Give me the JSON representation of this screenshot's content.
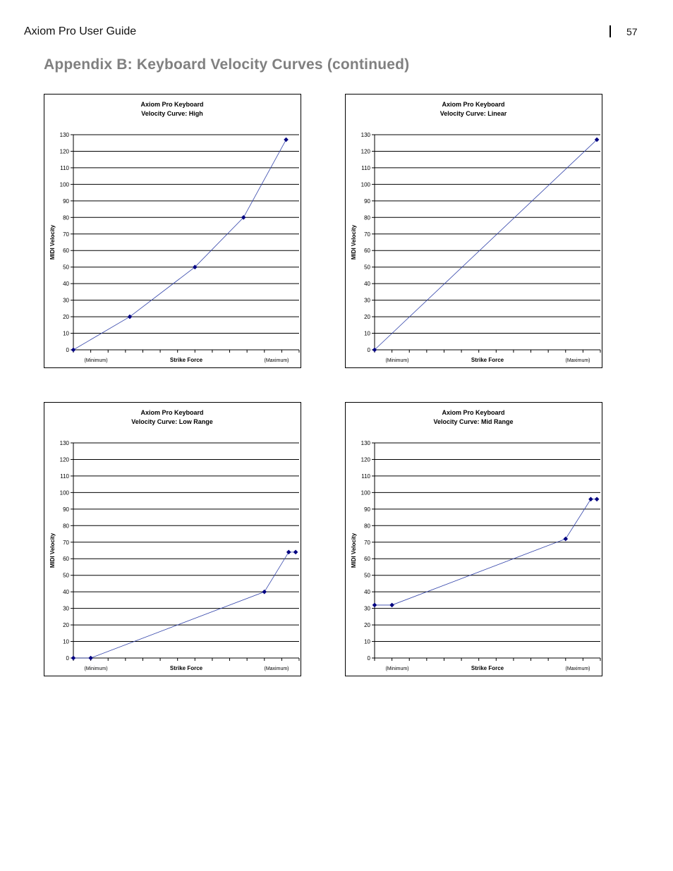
{
  "header": {
    "doc_title": "Axiom Pro User Guide",
    "page_number": "57",
    "heading": "Appendix B:  Keyboard Velocity Curves (continued)"
  },
  "colors": {
    "line": "#3344aa",
    "marker": "#000080",
    "grid": "#000000"
  },
  "chart_data": [
    {
      "type": "line",
      "title": [
        "Axiom Pro Keyboard",
        "Velocity Curve: High"
      ],
      "xlabel": "Strike Force",
      "ylabel": "MIDI Velocity",
      "x_tick_labels": {
        "min": "(Minimum)",
        "max": "(Maximum)"
      },
      "xlim": [
        0,
        13
      ],
      "ylim": [
        0,
        130
      ],
      "y_ticks": [
        0,
        10,
        20,
        30,
        40,
        50,
        60,
        70,
        80,
        90,
        100,
        110,
        120,
        130
      ],
      "grid": true,
      "series": [
        {
          "x": [
            0,
            3.25,
            7,
            9.8,
            12.25
          ],
          "y": [
            0,
            20,
            50,
            80,
            127
          ]
        }
      ]
    },
    {
      "type": "line",
      "title": [
        "Axiom Pro Keyboard",
        "Velocity Curve: Linear"
      ],
      "xlabel": "Strike Force",
      "ylabel": "MIDI Velocity",
      "x_tick_labels": {
        "min": "(Minimum)",
        "max": "(Maximum)"
      },
      "xlim": [
        0,
        13
      ],
      "ylim": [
        0,
        130
      ],
      "y_ticks": [
        0,
        10,
        20,
        30,
        40,
        50,
        60,
        70,
        80,
        90,
        100,
        110,
        120,
        130
      ],
      "grid": true,
      "series": [
        {
          "x": [
            0,
            12.8
          ],
          "y": [
            0,
            127
          ]
        }
      ]
    },
    {
      "type": "line",
      "title": [
        "Axiom Pro Keyboard",
        "Velocity Curve: Low Range"
      ],
      "xlabel": "Strike Force",
      "ylabel": "MIDI Velocity",
      "x_tick_labels": {
        "min": "(Minimum)",
        "max": "(Maximum)"
      },
      "xlim": [
        0,
        13
      ],
      "ylim": [
        0,
        130
      ],
      "y_ticks": [
        0,
        10,
        20,
        30,
        40,
        50,
        60,
        70,
        80,
        90,
        100,
        110,
        120,
        130
      ],
      "grid": true,
      "series": [
        {
          "x": [
            0,
            1,
            11,
            12.4,
            12.8
          ],
          "y": [
            0,
            0,
            40,
            64,
            64
          ]
        }
      ]
    },
    {
      "type": "line",
      "title": [
        "Axiom Pro Keyboard",
        "Velocity Curve: Mid Range"
      ],
      "xlabel": "Strike Force",
      "ylabel": "MIDI Velocity",
      "x_tick_labels": {
        "min": "(Minimum)",
        "max": "(Maximum)"
      },
      "xlim": [
        0,
        13
      ],
      "ylim": [
        0,
        130
      ],
      "y_ticks": [
        0,
        10,
        20,
        30,
        40,
        50,
        60,
        70,
        80,
        90,
        100,
        110,
        120,
        130
      ],
      "grid": true,
      "series": [
        {
          "x": [
            0,
            1,
            11,
            12.45,
            12.8
          ],
          "y": [
            32,
            32,
            72,
            96,
            96
          ]
        }
      ]
    }
  ]
}
